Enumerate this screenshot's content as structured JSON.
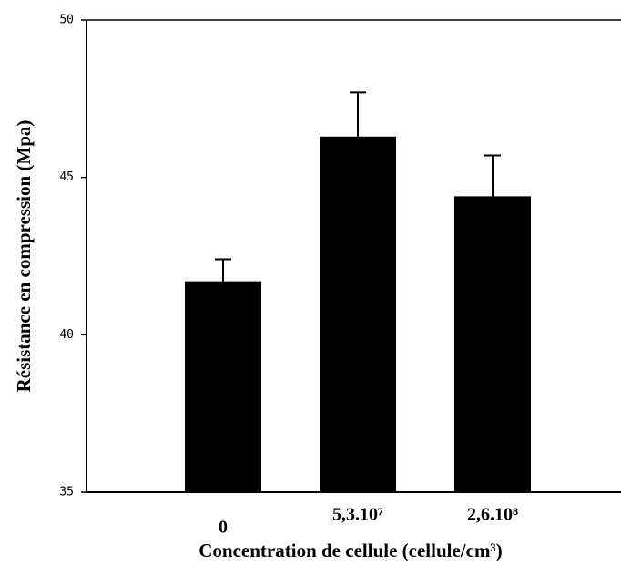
{
  "chart_data": {
    "type": "bar",
    "categories": [
      "0",
      "5,3.10⁷",
      "2,6.10⁸"
    ],
    "values": [
      41.7,
      46.3,
      44.4
    ],
    "errors": [
      0.7,
      1.4,
      1.3
    ],
    "color": "#000000",
    "xlabel": "Concentration de cellule (cellule/cm³)",
    "ylabel": "Résistance en compression (Mpa)",
    "ylim": [
      35,
      50
    ],
    "yticks": [
      35,
      40,
      45,
      50
    ]
  }
}
